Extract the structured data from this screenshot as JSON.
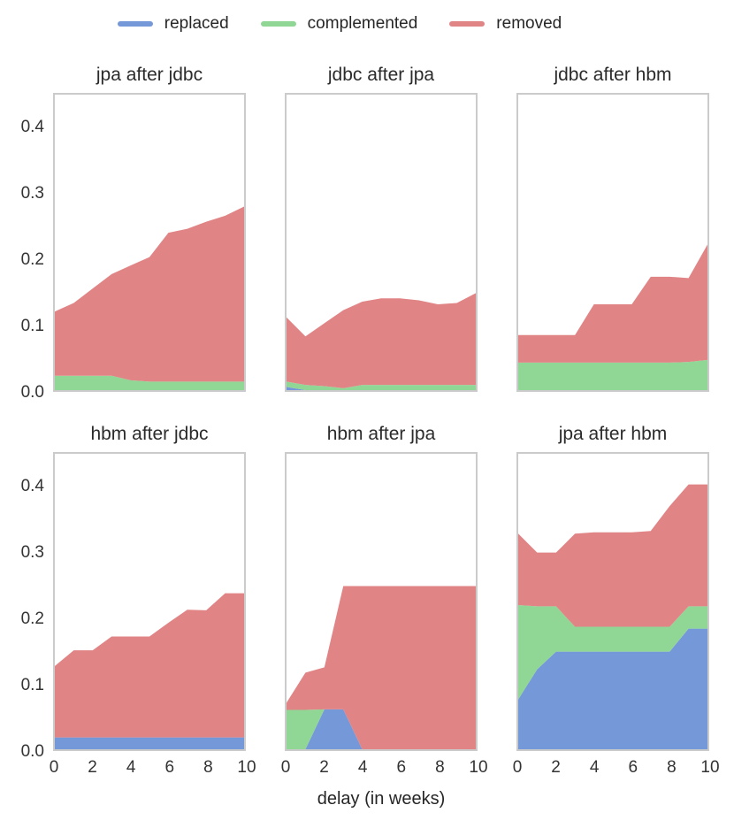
{
  "legend": {
    "items": [
      {
        "label": "replaced",
        "color": "#7598D9"
      },
      {
        "label": "complemented",
        "color": "#90D695"
      },
      {
        "label": "removed",
        "color": "#E08486"
      }
    ]
  },
  "axes": {
    "xlabel": "delay (in weeks)",
    "y_ticks": [
      "0.0",
      "0.1",
      "0.2",
      "0.3",
      "0.4"
    ],
    "x_ticks": [
      "0",
      "2",
      "4",
      "6",
      "8",
      "10"
    ],
    "xlim": [
      0,
      10
    ],
    "ylim": [
      0,
      0.4507
    ],
    "grid": false,
    "legend_position": "top-center"
  },
  "chart_data": [
    {
      "type": "area",
      "stacked": true,
      "title": "jpa after jdbc",
      "x": [
        0,
        1,
        2,
        3,
        4,
        5,
        6,
        7,
        8,
        9,
        10
      ],
      "ylim": [
        0,
        0.4507
      ],
      "series": [
        {
          "name": "replaced",
          "color": "#7598D9",
          "values": [
            0,
            0,
            0,
            0,
            0,
            0,
            0,
            0,
            0,
            0,
            0
          ]
        },
        {
          "name": "complemented",
          "color": "#90D695",
          "values": [
            0.022,
            0.022,
            0.022,
            0.022,
            0.015,
            0.013,
            0.013,
            0.013,
            0.013,
            0.013,
            0.013
          ]
        },
        {
          "name": "removed",
          "color": "#E08486",
          "values": [
            0.098,
            0.111,
            0.133,
            0.155,
            0.175,
            0.19,
            0.227,
            0.233,
            0.244,
            0.253,
            0.267
          ]
        }
      ]
    },
    {
      "type": "area",
      "stacked": true,
      "title": "jdbc after jpa",
      "x": [
        0,
        1,
        2,
        3,
        4,
        5,
        6,
        7,
        8,
        9,
        10
      ],
      "ylim": [
        0,
        0.4507
      ],
      "series": [
        {
          "name": "replaced",
          "color": "#7598D9",
          "values": [
            0.005,
            0,
            0,
            0,
            0,
            0,
            0,
            0,
            0,
            0,
            0
          ]
        },
        {
          "name": "complemented",
          "color": "#90D695",
          "values": [
            0.008,
            0.008,
            0.006,
            0.003,
            0.008,
            0.008,
            0.008,
            0.008,
            0.008,
            0.008,
            0.008
          ]
        },
        {
          "name": "removed",
          "color": "#E08486",
          "values": [
            0.098,
            0.074,
            0.096,
            0.119,
            0.127,
            0.132,
            0.132,
            0.129,
            0.123,
            0.125,
            0.14
          ]
        }
      ]
    },
    {
      "type": "area",
      "stacked": true,
      "title": "jdbc after hbm",
      "x": [
        0,
        1,
        2,
        3,
        4,
        5,
        6,
        7,
        8,
        9,
        10
      ],
      "ylim": [
        0,
        0.4507
      ],
      "series": [
        {
          "name": "replaced",
          "color": "#7598D9",
          "values": [
            0,
            0,
            0,
            0,
            0,
            0,
            0,
            0,
            0,
            0,
            0
          ]
        },
        {
          "name": "complemented",
          "color": "#90D695",
          "values": [
            0.042,
            0.042,
            0.042,
            0.042,
            0.042,
            0.042,
            0.042,
            0.042,
            0.042,
            0.043,
            0.046
          ]
        },
        {
          "name": "removed",
          "color": "#E08486",
          "values": [
            0.042,
            0.042,
            0.042,
            0.042,
            0.089,
            0.089,
            0.089,
            0.131,
            0.131,
            0.128,
            0.176
          ]
        }
      ]
    },
    {
      "type": "area",
      "stacked": true,
      "title": "hbm after jdbc",
      "x": [
        0,
        1,
        2,
        3,
        4,
        5,
        6,
        7,
        8,
        9,
        10
      ],
      "ylim": [
        0,
        0.4507
      ],
      "series": [
        {
          "name": "replaced",
          "color": "#7598D9",
          "values": [
            0.018,
            0.018,
            0.018,
            0.018,
            0.018,
            0.018,
            0.018,
            0.018,
            0.018,
            0.018,
            0.018
          ]
        },
        {
          "name": "complemented",
          "color": "#90D695",
          "values": [
            0,
            0,
            0,
            0,
            0,
            0,
            0,
            0,
            0,
            0,
            0
          ]
        },
        {
          "name": "removed",
          "color": "#E08486",
          "values": [
            0.109,
            0.133,
            0.133,
            0.154,
            0.154,
            0.154,
            0.175,
            0.195,
            0.194,
            0.22,
            0.22
          ]
        }
      ]
    },
    {
      "type": "area",
      "stacked": true,
      "title": "hbm after jpa",
      "x": [
        0,
        1,
        2,
        3,
        4,
        5,
        6,
        7,
        8,
        9,
        10
      ],
      "ylim": [
        0,
        0.4507
      ],
      "series": [
        {
          "name": "replaced",
          "color": "#7598D9",
          "values": [
            0,
            0,
            0.061,
            0.061,
            0,
            0,
            0,
            0,
            0,
            0,
            0
          ]
        },
        {
          "name": "complemented",
          "color": "#90D695",
          "values": [
            0.06,
            0.06,
            0,
            0,
            0,
            0,
            0,
            0,
            0,
            0,
            0
          ]
        },
        {
          "name": "removed",
          "color": "#E08486",
          "values": [
            0.011,
            0.057,
            0.064,
            0.188,
            0.249,
            0.249,
            0.249,
            0.249,
            0.249,
            0.249,
            0.249
          ]
        }
      ]
    },
    {
      "type": "area",
      "stacked": true,
      "title": "jpa after hbm",
      "x": [
        0,
        1,
        2,
        3,
        4,
        5,
        6,
        7,
        8,
        9,
        10
      ],
      "ylim": [
        0,
        0.4507
      ],
      "series": [
        {
          "name": "replaced",
          "color": "#7598D9",
          "values": [
            0.076,
            0.122,
            0.149,
            0.149,
            0.149,
            0.149,
            0.149,
            0.149,
            0.149,
            0.184,
            0.184
          ]
        },
        {
          "name": "complemented",
          "color": "#90D695",
          "values": [
            0.144,
            0.096,
            0.069,
            0.038,
            0.038,
            0.038,
            0.038,
            0.038,
            0.038,
            0.034,
            0.034
          ]
        },
        {
          "name": "removed",
          "color": "#E08486",
          "values": [
            0.109,
            0.082,
            0.082,
            0.142,
            0.144,
            0.144,
            0.144,
            0.146,
            0.184,
            0.186,
            0.186
          ]
        }
      ]
    }
  ]
}
